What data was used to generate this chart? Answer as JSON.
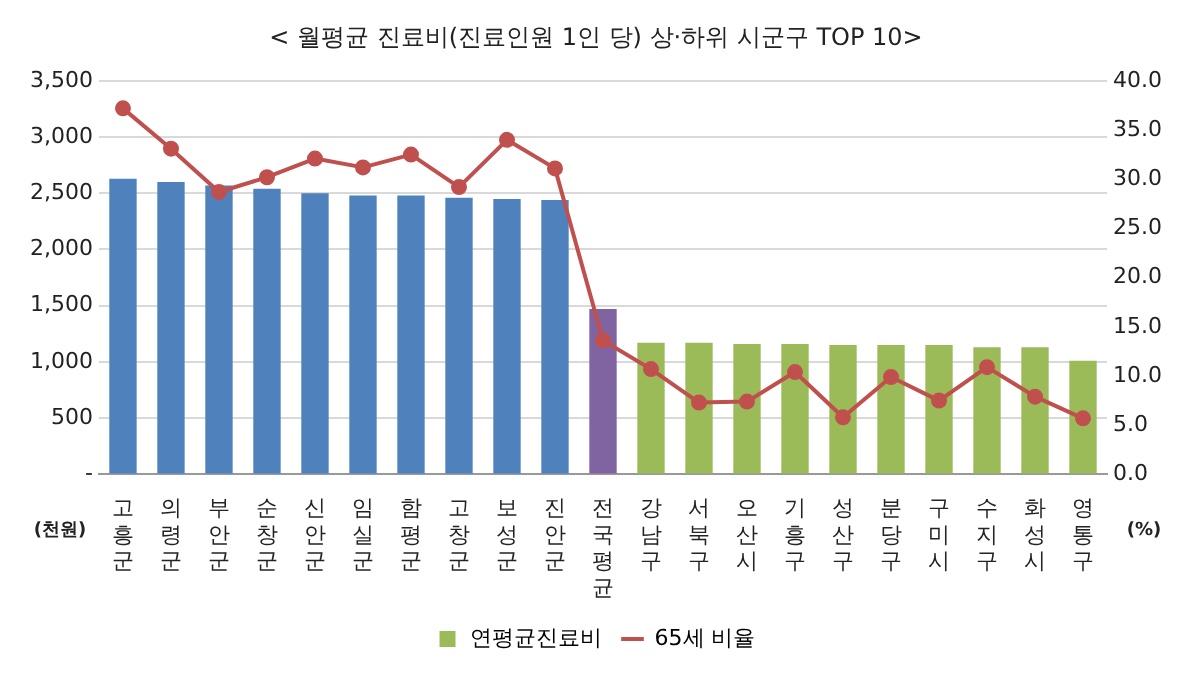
{
  "chart_data": {
    "type": "bar",
    "title": "< 월평균 진료비(진료인원 1인 당) 상·하위 시군구 TOP 10>",
    "ylabel": "(천원)",
    "y2label": "(%)",
    "categories": [
      "고흥군",
      "의령군",
      "부안군",
      "순창군",
      "신안군",
      "임실군",
      "함평군",
      "고창군",
      "보성군",
      "진안군",
      "전국평균",
      "강남구",
      "서북구",
      "오산시",
      "기흥구",
      "성산구",
      "분당구",
      "구미시",
      "수지구",
      "화성시",
      "영통구"
    ],
    "series": [
      {
        "name": "연평균진료비",
        "color": "#9bbb59",
        "colors": [
          "#4f81bd",
          "#4f81bd",
          "#4f81bd",
          "#4f81bd",
          "#4f81bd",
          "#4f81bd",
          "#4f81bd",
          "#4f81bd",
          "#4f81bd",
          "#4f81bd",
          "#8064a2",
          "#9bbb59",
          "#9bbb59",
          "#9bbb59",
          "#9bbb59",
          "#9bbb59",
          "#9bbb59",
          "#9bbb59",
          "#9bbb59",
          "#9bbb59",
          "#9bbb59"
        ],
        "values": [
          2630,
          2600,
          2570,
          2540,
          2500,
          2480,
          2480,
          2460,
          2450,
          2440,
          1470,
          1170,
          1170,
          1160,
          1160,
          1150,
          1150,
          1150,
          1130,
          1130,
          1010
        ]
      },
      {
        "name": "65세 비율",
        "type": "line",
        "axis": "y2",
        "color": "#c0504d",
        "marker": "circle",
        "values": [
          37.2,
          33.1,
          28.7,
          30.2,
          32.1,
          31.2,
          32.5,
          29.2,
          34.0,
          31.1,
          13.6,
          10.7,
          7.3,
          7.4,
          10.4,
          5.8,
          9.9,
          7.5,
          10.9,
          7.9,
          5.7
        ]
      }
    ],
    "ylim": [
      0,
      3500
    ],
    "yticks": [
      {
        "value": 0,
        "label": "-"
      },
      {
        "value": 500,
        "label": "500"
      },
      {
        "value": 1000,
        "label": "1,000"
      },
      {
        "value": 1500,
        "label": "1,500"
      },
      {
        "value": 2000,
        "label": "2,000"
      },
      {
        "value": 2500,
        "label": "2,500"
      },
      {
        "value": 3000,
        "label": "3,000"
      },
      {
        "value": 3500,
        "label": "3,500"
      }
    ],
    "y2lim": [
      0,
      40
    ],
    "y2ticks": [
      {
        "value": 0,
        "label": "0.0"
      },
      {
        "value": 5,
        "label": "5.0"
      },
      {
        "value": 10,
        "label": "10.0"
      },
      {
        "value": 15,
        "label": "15.0"
      },
      {
        "value": 20,
        "label": "20.0"
      },
      {
        "value": 25,
        "label": "25.0"
      },
      {
        "value": 30,
        "label": "30.0"
      },
      {
        "value": 35,
        "label": "35.0"
      },
      {
        "value": 40,
        "label": "40.0"
      }
    ],
    "grid": "y",
    "legend": "bottom"
  }
}
